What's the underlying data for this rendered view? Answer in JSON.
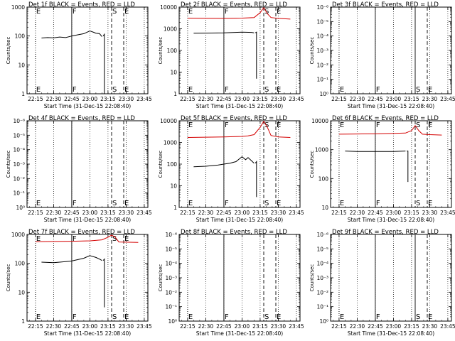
{
  "chart_data": [
    {
      "type": "line",
      "title": "Det 1f BLACK = Events, RED = LLD",
      "xlabel": "Start Time (31-Dec-15 22:08:40)",
      "ylabel": "Counts/sec",
      "x_ticks": [
        "22:15",
        "22:30",
        "22:45",
        "23:00",
        "23:15",
        "23:30",
        "23:45"
      ],
      "y_ticks": [
        "1",
        "10",
        "100",
        "1000"
      ],
      "y_scale": "log",
      "ylim": [
        1,
        1000
      ],
      "events_ylim": [
        1,
        1000
      ],
      "markers": [
        {
          "label": "E",
          "time": "22:15",
          "style": "dotted"
        },
        {
          "label": "F",
          "time": "22:45",
          "style": "solid"
        },
        {
          "label": "S",
          "time": "23:18",
          "style": "dashed"
        },
        {
          "label": "E",
          "time": "23:28",
          "style": "dashed"
        }
      ],
      "series": [
        {
          "color": "#000000",
          "segments": [
            [
              [
                "22:20",
                85
              ],
              [
                "22:25",
                88
              ],
              [
                "22:30",
                86
              ],
              [
                "22:35",
                92
              ],
              [
                "22:40",
                88
              ],
              [
                "22:45",
                100
              ],
              [
                "22:50",
                110
              ],
              [
                "22:55",
                120
              ],
              [
                "23:00",
                150
              ],
              [
                "23:03",
                135
              ],
              [
                "23:05",
                125
              ],
              [
                "23:08",
                120
              ],
              [
                "23:10",
                95
              ]
            ],
            [
              [
                "23:11",
                100
              ],
              [
                "23:12",
                115
              ],
              [
                "23:12",
                1
              ]
            ]
          ]
        }
      ]
    },
    {
      "type": "line",
      "title": "Det 2f BLACK = Events, RED = LLD",
      "xlabel": "Start Time (31-Dec-15 22:08:40)",
      "ylabel": "Counts/sec",
      "x_ticks": [
        "22:15",
        "22:30",
        "22:45",
        "23:00",
        "23:15",
        "23:30",
        "23:45"
      ],
      "y_ticks": [
        "1",
        "10",
        "100",
        "1000",
        "10000"
      ],
      "y_scale": "log",
      "ylim": [
        1,
        10000
      ],
      "events_ylim": [
        1,
        10000
      ],
      "markers": [
        {
          "label": "E",
          "time": "22:15",
          "style": "dotted"
        },
        {
          "label": "F",
          "time": "22:45",
          "style": "solid"
        },
        {
          "label": "S",
          "time": "23:18",
          "style": "dashed"
        },
        {
          "label": "E",
          "time": "23:28",
          "style": "dashed"
        }
      ],
      "series": [
        {
          "color": "#d40000",
          "segments": [
            [
              [
                "22:15",
                3100
              ],
              [
                "22:30",
                3050
              ],
              [
                "22:45",
                3000
              ],
              [
                "23:00",
                3100
              ],
              [
                "23:05",
                3200
              ],
              [
                "23:10",
                3300
              ],
              [
                "23:15",
                5500
              ],
              [
                "23:18",
                9500
              ],
              [
                "23:21",
                5000
              ],
              [
                "23:24",
                3300
              ],
              [
                "23:30",
                3000
              ],
              [
                "23:40",
                2800
              ]
            ]
          ]
        },
        {
          "color": "#000000",
          "segments": [
            [
              [
                "22:20",
                620
              ],
              [
                "22:30",
                630
              ],
              [
                "22:45",
                650
              ],
              [
                "23:00",
                700
              ],
              [
                "23:08",
                680
              ],
              [
                "23:10",
                650
              ]
            ],
            [
              [
                "23:11",
                650
              ],
              [
                "23:12",
                700
              ],
              [
                "23:12",
                5
              ]
            ]
          ]
        }
      ]
    },
    {
      "type": "line",
      "title": "Det 3f BLACK = Events, RED = LLD",
      "xlabel": "Start Time (31-Dec-15 22:08:40)",
      "ylabel": "Counts/sec",
      "x_ticks": [
        "22:15",
        "22:30",
        "22:45",
        "23:00",
        "23:15",
        "23:30",
        "23:45"
      ],
      "y_ticks": [
        "10⁰",
        "10⁻¹",
        "10⁻²",
        "10⁻³",
        "10⁻⁴",
        "10⁻⁵",
        "10⁻⁶"
      ],
      "y_scale": "log",
      "ylim": [
        1,
        1000000
      ],
      "events_ylim": [
        1,
        1000000
      ],
      "markers": [
        {
          "label": "E",
          "time": "22:15",
          "style": "dotted"
        },
        {
          "label": "F",
          "time": "22:45",
          "style": "solid"
        },
        {
          "label": "S",
          "time": "23:18",
          "style": "solid"
        },
        {
          "label": "E",
          "time": "23:28",
          "style": "dashed"
        }
      ],
      "series": []
    },
    {
      "type": "line",
      "title": "Det 4f BLACK = Events, RED = LLD",
      "xlabel": "Start Time (31-Dec-15 22:08:40)",
      "ylabel": "Counts/sec",
      "x_ticks": [
        "22:15",
        "22:30",
        "22:45",
        "23:00",
        "23:15",
        "23:30",
        "23:45"
      ],
      "y_ticks": [
        "10⁰",
        "10⁻¹",
        "10⁻²",
        "10⁻³",
        "10⁻⁴",
        "10⁻⁵",
        "10⁻⁶"
      ],
      "y_scale": "log",
      "ylim": [
        1,
        1000000
      ],
      "events_ylim": [
        1,
        1000000
      ],
      "markers": [
        {
          "label": "E",
          "time": "22:15",
          "style": "dotted"
        },
        {
          "label": "F",
          "time": "22:45",
          "style": "solid"
        },
        {
          "label": "S",
          "time": "23:18",
          "style": "dashed"
        },
        {
          "label": "E",
          "time": "23:28",
          "style": "dashed"
        }
      ],
      "series": []
    },
    {
      "type": "line",
      "title": "Det 5f BLACK = Events, RED = LLD",
      "xlabel": "Start Time (31-Dec-15 22:08:40)",
      "ylabel": "Counts/sec",
      "x_ticks": [
        "22:15",
        "22:30",
        "22:45",
        "23:00",
        "23:15",
        "23:30",
        "23:45"
      ],
      "y_ticks": [
        "1",
        "10",
        "100",
        "1000",
        "10000"
      ],
      "y_scale": "log",
      "ylim": [
        1,
        10000
      ],
      "events_ylim": [
        1,
        10000
      ],
      "markers": [
        {
          "label": "E",
          "time": "22:15",
          "style": "dotted"
        },
        {
          "label": "F",
          "time": "22:45",
          "style": "solid"
        },
        {
          "label": "S",
          "time": "23:18",
          "style": "dashed"
        },
        {
          "label": "E",
          "time": "23:28",
          "style": "dashed"
        }
      ],
      "series": [
        {
          "color": "#d40000",
          "segments": [
            [
              [
                "22:15",
                1700
              ],
              [
                "22:30",
                1750
              ],
              [
                "22:45",
                1800
              ],
              [
                "23:00",
                1900
              ],
              [
                "23:05",
                2000
              ],
              [
                "23:10",
                2300
              ],
              [
                "23:15",
                5000
              ],
              [
                "23:18",
                9500
              ],
              [
                "23:21",
                5000
              ],
              [
                "23:24",
                2100
              ],
              [
                "23:30",
                1800
              ],
              [
                "23:40",
                1700
              ]
            ]
          ]
        },
        {
          "color": "#000000",
          "segments": [
            [
              [
                "22:20",
                75
              ],
              [
                "22:30",
                80
              ],
              [
                "22:40",
                90
              ],
              [
                "22:45",
                100
              ],
              [
                "22:50",
                110
              ],
              [
                "22:55",
                130
              ],
              [
                "23:00",
                220
              ],
              [
                "23:03",
                160
              ],
              [
                "23:05",
                200
              ],
              [
                "23:08",
                140
              ],
              [
                "23:10",
                110
              ]
            ],
            [
              [
                "23:11",
                110
              ],
              [
                "23:12",
                130
              ],
              [
                "23:12",
                3
              ]
            ]
          ]
        }
      ]
    },
    {
      "type": "line",
      "title": "Det 6f BLACK = Events, RED = LLD",
      "xlabel": "Start Time (31-Dec-15 22:08:40)",
      "ylabel": "Counts/sec",
      "x_ticks": [
        "22:15",
        "22:30",
        "22:45",
        "23:00",
        "23:15",
        "23:30",
        "23:45"
      ],
      "y_ticks": [
        "10",
        "100",
        "1000",
        "10000"
      ],
      "y_scale": "log",
      "ylim": [
        1,
        10000
      ],
      "events_ylim": [
        1,
        10000
      ],
      "markers": [
        {
          "label": "E",
          "time": "22:15",
          "style": "dotted"
        },
        {
          "label": "F",
          "time": "22:45",
          "style": "solid"
        },
        {
          "label": "S",
          "time": "23:18",
          "style": "dashed"
        },
        {
          "label": "E",
          "time": "23:28",
          "style": "dashed"
        }
      ],
      "series": [
        {
          "color": "#d40000",
          "segments": [
            [
              [
                "22:15",
                2400
              ],
              [
                "22:30",
                2450
              ],
              [
                "22:45",
                2500
              ],
              [
                "23:00",
                2600
              ],
              [
                "23:10",
                2700
              ],
              [
                "23:15",
                3500
              ],
              [
                "23:18",
                6000
              ],
              [
                "23:21",
                3500
              ],
              [
                "23:24",
                2400
              ],
              [
                "23:30",
                2300
              ],
              [
                "23:40",
                2200
              ]
            ]
          ]
        },
        {
          "color": "#000000",
          "segments": [
            [
              [
                "22:20",
                400
              ],
              [
                "22:30",
                380
              ],
              [
                "22:45",
                380
              ],
              [
                "23:00",
                380
              ],
              [
                "23:10",
                400
              ]
            ],
            [
              [
                "23:11",
                400
              ],
              [
                "23:12",
                400
              ],
              [
                "23:12",
                15
              ]
            ]
          ]
        }
      ]
    },
    {
      "type": "line",
      "title": "Det 7f BLACK = Events, RED = LLD",
      "xlabel": "Start Time (31-Dec-15 22:08:40)",
      "ylabel": "Counts/sec",
      "x_ticks": [
        "22:15",
        "22:30",
        "22:45",
        "23:00",
        "23:15",
        "23:30",
        "23:45"
      ],
      "y_ticks": [
        "1",
        "10",
        "100",
        "1000"
      ],
      "y_scale": "log",
      "ylim": [
        1,
        1000
      ],
      "events_ylim": [
        1,
        1000
      ],
      "markers": [
        {
          "label": "E",
          "time": "22:15",
          "style": "dotted"
        },
        {
          "label": "F",
          "time": "22:45",
          "style": "solid"
        },
        {
          "label": "S",
          "time": "23:18",
          "style": "dashed"
        },
        {
          "label": "E",
          "time": "23:28",
          "style": "dashed"
        }
      ],
      "series": [
        {
          "color": "#d40000",
          "segments": [
            [
              [
                "22:15",
                560
              ],
              [
                "22:30",
                570
              ],
              [
                "22:45",
                580
              ],
              [
                "23:00",
                600
              ],
              [
                "23:10",
                650
              ],
              [
                "23:15",
                800
              ],
              [
                "23:18",
                950
              ],
              [
                "23:21",
                800
              ],
              [
                "23:24",
                550
              ],
              [
                "23:30",
                540
              ],
              [
                "23:40",
                530
              ]
            ]
          ]
        },
        {
          "color": "#000000",
          "segments": [
            [
              [
                "22:20",
                110
              ],
              [
                "22:30",
                105
              ],
              [
                "22:40",
                115
              ],
              [
                "22:45",
                120
              ],
              [
                "22:55",
                150
              ],
              [
                "23:00",
                185
              ],
              [
                "23:05",
                160
              ],
              [
                "23:08",
                140
              ],
              [
                "23:10",
                125
              ]
            ],
            [
              [
                "23:11",
                125
              ],
              [
                "23:12",
                140
              ],
              [
                "23:12",
                3
              ]
            ]
          ]
        }
      ]
    },
    {
      "type": "line",
      "title": "Det 8f BLACK = Events, RED = LLD",
      "xlabel": "Start Time (31-Dec-15 22:08:40)",
      "ylabel": "Counts/sec",
      "x_ticks": [
        "22:15",
        "22:30",
        "22:45",
        "23:00",
        "23:15",
        "23:30",
        "23:45"
      ],
      "y_ticks": [
        "10⁰",
        "10⁻¹",
        "10⁻²",
        "10⁻³",
        "10⁻⁴",
        "10⁻⁵",
        "10⁻⁶"
      ],
      "y_scale": "log",
      "ylim": [
        1,
        1000000
      ],
      "events_ylim": [
        1,
        1000000
      ],
      "markers": [
        {
          "label": "E",
          "time": "22:15",
          "style": "dotted"
        },
        {
          "label": "F",
          "time": "22:45",
          "style": "solid"
        },
        {
          "label": "S",
          "time": "23:18",
          "style": "dashed"
        },
        {
          "label": "E",
          "time": "23:28",
          "style": "dashed"
        }
      ],
      "series": []
    },
    {
      "type": "line",
      "title": "Det 9f BLACK = Events, RED = LLD",
      "xlabel": "Start Time (31-Dec-15 22:08:40)",
      "ylabel": "Counts/sec",
      "x_ticks": [
        "22:15",
        "22:30",
        "22:45",
        "23:00",
        "23:15",
        "23:30",
        "23:45"
      ],
      "y_ticks": [
        "10⁰",
        "10⁻¹",
        "10⁻²",
        "10⁻³",
        "10⁻⁴",
        "10⁻⁵",
        "10⁻⁶"
      ],
      "y_scale": "log",
      "ylim": [
        1,
        1000000
      ],
      "events_ylim": [
        1,
        1000000
      ],
      "markers": [
        {
          "label": "E",
          "time": "22:15",
          "style": "dotted"
        },
        {
          "label": "F",
          "time": "22:45",
          "style": "solid"
        },
        {
          "label": "S",
          "time": "23:18",
          "style": "solid"
        },
        {
          "label": "E",
          "time": "23:28",
          "style": "dashed"
        }
      ],
      "series": []
    }
  ]
}
